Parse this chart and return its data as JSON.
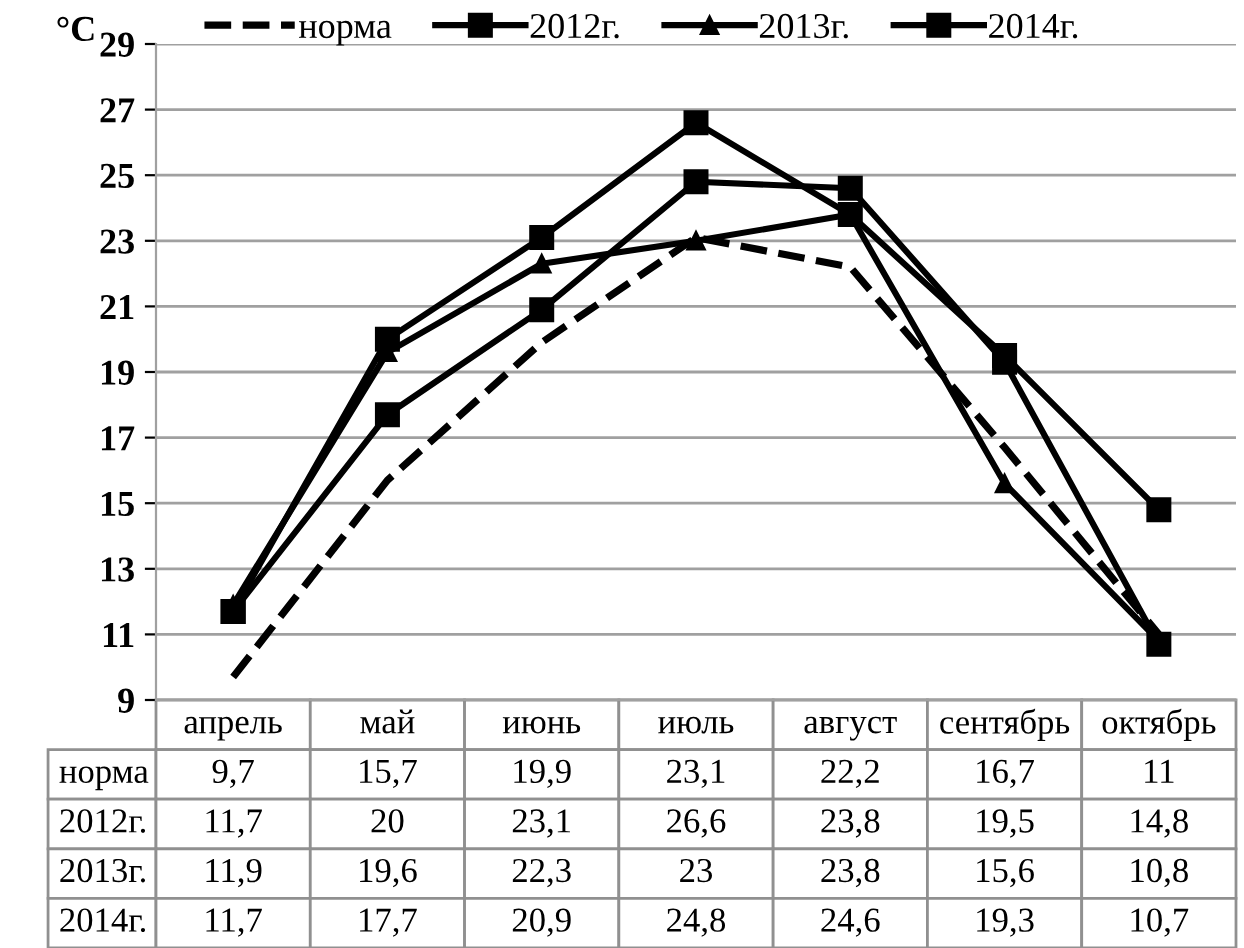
{
  "chart_data": {
    "type": "line",
    "ylabel": "°C",
    "categories": [
      "апрель",
      "май",
      "июнь",
      "июль",
      "август",
      "сентябрь",
      "октябрь"
    ],
    "series": [
      {
        "name": "норма",
        "color": "#000000",
        "line_style": "dashed",
        "marker": "none",
        "values": [
          9.7,
          15.7,
          19.9,
          23.1,
          22.2,
          16.7,
          11
        ],
        "value_labels": [
          "9,7",
          "15,7",
          "19,9",
          "23,1",
          "22,2",
          "16,7",
          "11"
        ]
      },
      {
        "name": "2012г.",
        "color": "#000000",
        "line_style": "solid",
        "marker": "square",
        "values": [
          11.7,
          20,
          23.1,
          26.6,
          23.8,
          19.5,
          14.8
        ],
        "value_labels": [
          "11,7",
          "20",
          "23,1",
          "26,6",
          "23,8",
          "19,5",
          "14,8"
        ]
      },
      {
        "name": "2013г.",
        "color": "#000000",
        "line_style": "solid",
        "marker": "triangle",
        "values": [
          11.9,
          19.6,
          22.3,
          23,
          23.8,
          15.6,
          10.8
        ],
        "value_labels": [
          "11,9",
          "19,6",
          "22,3",
          "23",
          "23,8",
          "15,6",
          "10,8"
        ]
      },
      {
        "name": "2014г.",
        "color": "#000000",
        "line_style": "solid",
        "marker": "square",
        "values": [
          11.7,
          17.7,
          20.9,
          24.8,
          24.6,
          19.3,
          10.7
        ],
        "value_labels": [
          "11,7",
          "17,7",
          "20,9",
          "24,8",
          "24,6",
          "19,3",
          "10,7"
        ]
      }
    ],
    "ylim": [
      9,
      29
    ],
    "yticks": [
      9,
      11,
      13,
      15,
      17,
      19,
      21,
      23,
      25,
      27,
      29
    ],
    "grid": "y",
    "legend": "top"
  }
}
